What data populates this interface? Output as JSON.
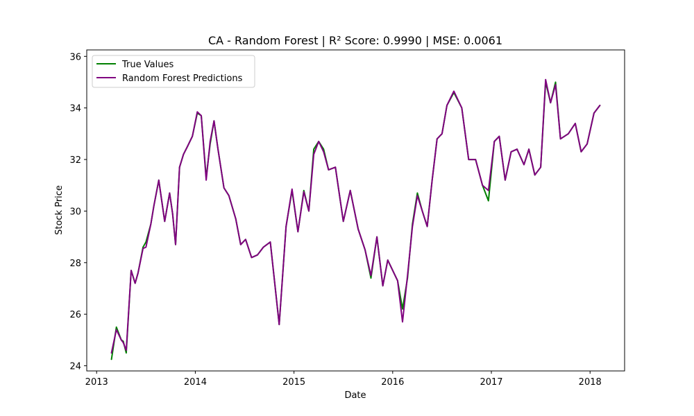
{
  "chart_data": {
    "type": "line",
    "title": "CA - Random Forest | R² Score: 0.9990 | MSE: 0.0061",
    "xlabel": "Date",
    "ylabel": "Stock Price",
    "xlim": [
      2012.9,
      2018.35
    ],
    "ylim": [
      23.8,
      36.25
    ],
    "xticks": [
      2013,
      2014,
      2015,
      2016,
      2017,
      2018
    ],
    "xtick_labels": [
      "2013",
      "2014",
      "2015",
      "2016",
      "2017",
      "2018"
    ],
    "yticks": [
      24,
      26,
      28,
      30,
      32,
      34,
      36
    ],
    "ytick_labels": [
      "24",
      "26",
      "28",
      "30",
      "32",
      "34",
      "36"
    ],
    "grid": false,
    "legend_position": "top-left",
    "series": [
      {
        "name": "True Values",
        "color": "#008000",
        "x": [
          2013.15,
          2013.2,
          2013.25,
          2013.27,
          2013.3,
          2013.35,
          2013.39,
          2013.42,
          2013.47,
          2013.5,
          2013.55,
          2013.58,
          2013.63,
          2013.69,
          2013.74,
          2013.77,
          2013.8,
          2013.84,
          2013.88,
          2013.92,
          2013.97,
          2014.02,
          2014.06,
          2014.11,
          2014.15,
          2014.19,
          2014.23,
          2014.29,
          2014.34,
          2014.41,
          2014.46,
          2014.51,
          2014.57,
          2014.63,
          2014.69,
          2014.76,
          2014.85,
          2014.92,
          2014.98,
          2015.04,
          2015.1,
          2015.15,
          2015.2,
          2015.25,
          2015.3,
          2015.35,
          2015.42,
          2015.5,
          2015.57,
          2015.65,
          2015.72,
          2015.78,
          2015.84,
          2015.9,
          2015.95,
          2016.05,
          2016.1,
          2016.15,
          2016.2,
          2016.25,
          2016.3,
          2016.35,
          2016.4,
          2016.45,
          2016.5,
          2016.55,
          2016.62,
          2016.7,
          2016.77,
          2016.84,
          2016.91,
          2016.97,
          2017.03,
          2017.08,
          2017.14,
          2017.2,
          2017.26,
          2017.33,
          2017.38,
          2017.44,
          2017.5,
          2017.55,
          2017.6,
          2017.65,
          2017.7,
          2017.78,
          2017.85,
          2017.91,
          2017.97,
          2018.04,
          2018.1
        ],
        "y": [
          24.25,
          25.5,
          25.0,
          24.95,
          24.5,
          27.7,
          27.2,
          27.6,
          28.6,
          28.8,
          29.5,
          30.2,
          31.2,
          29.6,
          30.7,
          29.9,
          28.7,
          31.7,
          32.2,
          32.5,
          32.9,
          33.8,
          33.7,
          31.3,
          32.6,
          33.5,
          32.4,
          30.9,
          30.6,
          29.7,
          28.7,
          28.9,
          28.2,
          28.3,
          28.6,
          28.8,
          25.6,
          29.4,
          30.8,
          29.2,
          30.8,
          30.0,
          32.4,
          32.7,
          32.4,
          31.6,
          31.7,
          29.6,
          30.8,
          29.3,
          28.5,
          27.4,
          29.0,
          27.1,
          28.1,
          27.3,
          26.2,
          27.4,
          29.5,
          30.7,
          30.0,
          29.4,
          31.2,
          32.8,
          33.0,
          34.1,
          34.6,
          34.0,
          32.0,
          32.0,
          31.0,
          30.4,
          32.7,
          32.9,
          31.2,
          32.3,
          32.4,
          31.8,
          32.4,
          31.4,
          31.7,
          35.0,
          34.2,
          35.0,
          32.8,
          33.0,
          33.4,
          32.3,
          32.6,
          33.8,
          34.1
        ]
      },
      {
        "name": "Random Forest Predictions",
        "color": "#800080",
        "x": [
          2013.15,
          2013.2,
          2013.25,
          2013.27,
          2013.3,
          2013.35,
          2013.39,
          2013.42,
          2013.47,
          2013.5,
          2013.55,
          2013.58,
          2013.63,
          2013.69,
          2013.74,
          2013.77,
          2013.8,
          2013.84,
          2013.88,
          2013.92,
          2013.97,
          2014.02,
          2014.06,
          2014.11,
          2014.15,
          2014.19,
          2014.23,
          2014.29,
          2014.34,
          2014.41,
          2014.46,
          2014.51,
          2014.57,
          2014.63,
          2014.69,
          2014.76,
          2014.85,
          2014.92,
          2014.98,
          2015.04,
          2015.1,
          2015.15,
          2015.2,
          2015.25,
          2015.3,
          2015.35,
          2015.42,
          2015.5,
          2015.57,
          2015.65,
          2015.72,
          2015.78,
          2015.84,
          2015.9,
          2015.95,
          2016.05,
          2016.1,
          2016.15,
          2016.2,
          2016.25,
          2016.3,
          2016.35,
          2016.4,
          2016.45,
          2016.5,
          2016.55,
          2016.62,
          2016.7,
          2016.77,
          2016.84,
          2016.91,
          2016.97,
          2017.03,
          2017.08,
          2017.14,
          2017.2,
          2017.26,
          2017.33,
          2017.38,
          2017.44,
          2017.5,
          2017.55,
          2017.6,
          2017.65,
          2017.7,
          2017.78,
          2017.85,
          2017.91,
          2017.97,
          2018.04,
          2018.1
        ],
        "y": [
          24.5,
          25.4,
          25.0,
          24.9,
          24.6,
          27.7,
          27.2,
          27.6,
          28.55,
          28.6,
          29.5,
          30.2,
          31.2,
          29.6,
          30.7,
          29.9,
          28.7,
          31.7,
          32.2,
          32.5,
          32.9,
          33.85,
          33.7,
          31.2,
          32.7,
          33.5,
          32.4,
          30.9,
          30.6,
          29.7,
          28.7,
          28.9,
          28.2,
          28.3,
          28.6,
          28.8,
          25.6,
          29.4,
          30.85,
          29.2,
          30.75,
          30.0,
          32.2,
          32.7,
          32.3,
          31.6,
          31.7,
          29.6,
          30.8,
          29.3,
          28.5,
          27.5,
          29.0,
          27.1,
          28.1,
          27.3,
          25.7,
          27.5,
          29.4,
          30.6,
          30.0,
          29.4,
          31.2,
          32.8,
          33.0,
          34.1,
          34.65,
          34.0,
          32.0,
          32.0,
          31.0,
          30.8,
          32.7,
          32.9,
          31.2,
          32.3,
          32.4,
          31.8,
          32.4,
          31.4,
          31.7,
          35.1,
          34.2,
          34.9,
          32.8,
          33.0,
          33.4,
          32.3,
          32.6,
          33.8,
          34.1
        ]
      }
    ]
  }
}
